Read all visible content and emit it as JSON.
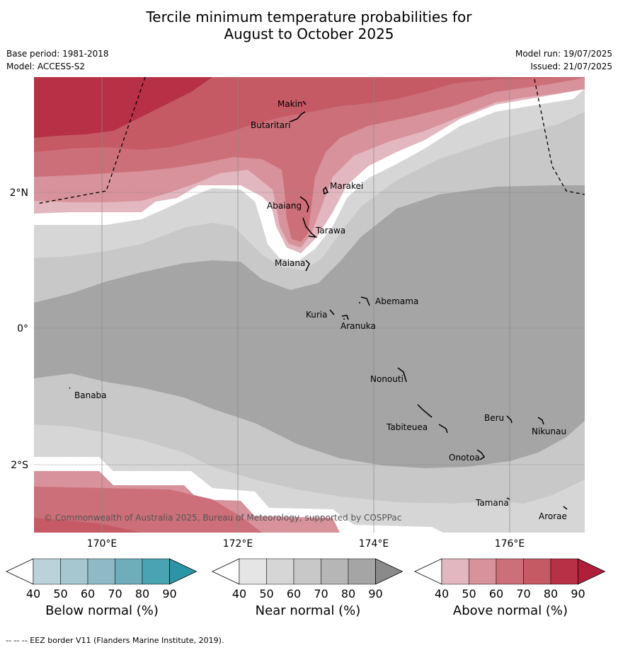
{
  "title": {
    "line1": "Tercile minimum temperature probabilities for",
    "line2": "August to October 2025"
  },
  "info": {
    "base_period": "Base period: 1981-2018",
    "model": "Model: ACCESS-S2",
    "model_run": "Model run: 19/07/2025",
    "issued": "Issued: 21/07/2025"
  },
  "map": {
    "lat_labels": [
      "2°N",
      "0°",
      "2°S"
    ],
    "lon_labels": [
      "170°E",
      "172°E",
      "174°E",
      "176°E"
    ],
    "copyright": "© Commonwealth of Australia 2025, Bureau of Meteorology, supported by COSPPac",
    "islands": [
      "Makin",
      "Butaritari",
      "Marakei",
      "Abaiang",
      "Tarawa",
      "Maiana",
      "Abemama",
      "Kuria",
      "Aranuka",
      "Nonouti",
      "Banaba",
      "Beru",
      "Tabiteuea",
      "Nikunau",
      "Onotoa",
      "Tamana",
      "Arorae"
    ]
  },
  "colorbars": [
    {
      "label": "Below normal (%)",
      "ticks": [
        "40",
        "50",
        "60",
        "70",
        "80",
        "90"
      ],
      "colors": [
        "#ffffff",
        "#bcd2da",
        "#a6c7cf",
        "#8fbac5",
        "#6fadbb",
        "#4aa3b2",
        "#2a95a6"
      ]
    },
    {
      "label": "Near normal (%)",
      "ticks": [
        "40",
        "50",
        "60",
        "70",
        "80",
        "90"
      ],
      "colors": [
        "#ffffff",
        "#e5e5e5",
        "#d6d6d6",
        "#c8c8c8",
        "#b6b6b6",
        "#a5a5a5",
        "#8a8a8a"
      ]
    },
    {
      "label": "Above normal (%)",
      "ticks": [
        "40",
        "50",
        "60",
        "70",
        "80",
        "90"
      ],
      "colors": [
        "#ffffff",
        "#e3b7bf",
        "#d8929b",
        "#cc6f78",
        "#c55a65",
        "#b83045",
        "#b01f3a"
      ]
    }
  ],
  "footer": "--  --  -- EEZ border V11 (Flanders Marine Institute, 2019)."
}
